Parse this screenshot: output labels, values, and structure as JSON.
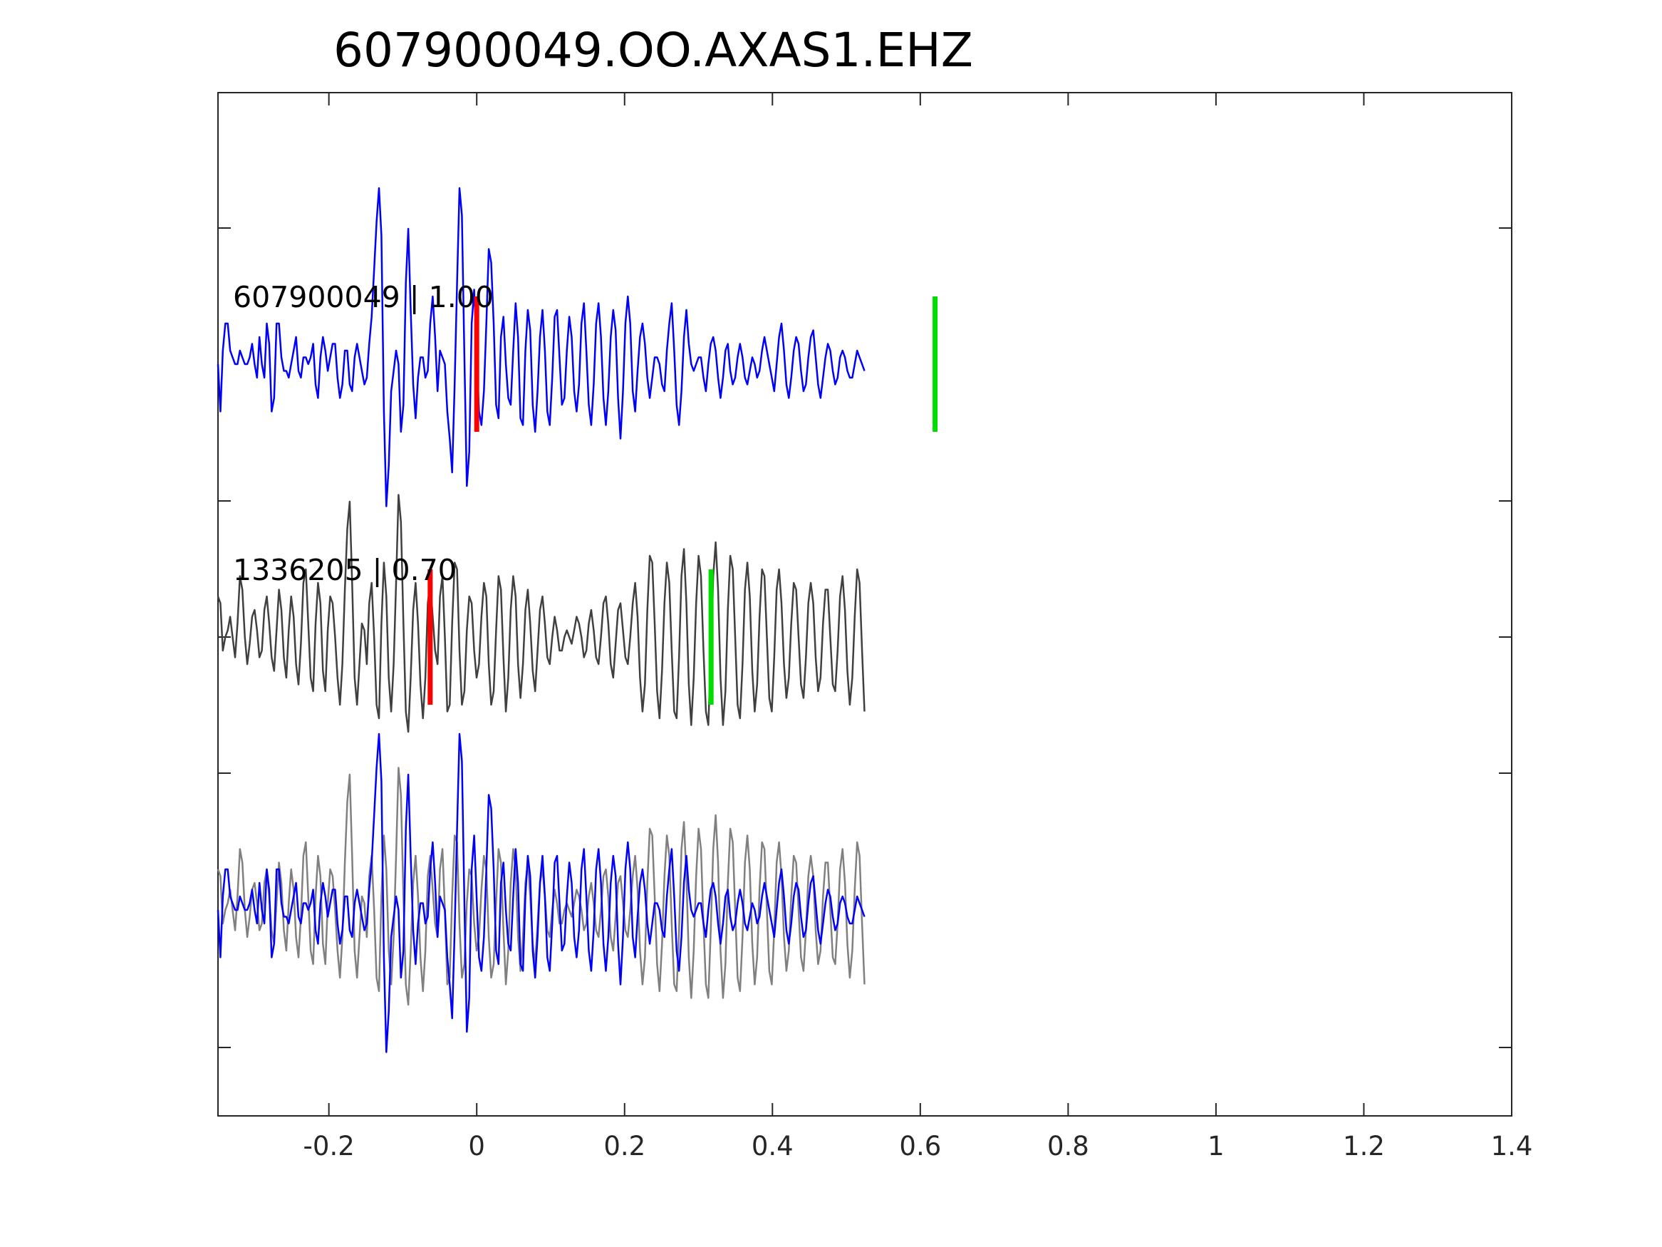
{
  "chart_data": {
    "type": "line",
    "title": "607900049.OO.AXAS1.EHZ",
    "xlabel": "",
    "ylabel": "",
    "xlim": [
      -0.35,
      1.4
    ],
    "x_ticks": [
      -0.2,
      0,
      0.2,
      0.4,
      0.6,
      0.8,
      1,
      1.2,
      1.4
    ],
    "x_tick_labels": [
      "-0.2",
      "0",
      "0.2",
      "0.4",
      "0.6",
      "0.8",
      "1",
      "1.2",
      "1.4"
    ],
    "y_tick_count": 7,
    "y_tick_labels_shown": false,
    "grid": false,
    "sample_interval_s": 0.0033,
    "panels": [
      {
        "label": "607900049 | 1.00",
        "series": [
          {
            "color": "#0000ff",
            "x_start": -0.35,
            "values": [
              0,
              -0.35,
              0.1,
              0.3,
              0.3,
              0.1,
              0.05,
              0,
              0,
              0.1,
              0.05,
              0,
              0,
              0.05,
              0.15,
              0,
              -0.1,
              0.2,
              0,
              -0.1,
              0.3,
              0.15,
              -0.35,
              -0.25,
              0.3,
              0.3,
              0.05,
              -0.05,
              -0.05,
              -0.1,
              0,
              0.1,
              0.2,
              -0.05,
              -0.1,
              0.05,
              0.05,
              0.0,
              0.05,
              0.15,
              -0.15,
              -0.25,
              0.05,
              0.2,
              0.1,
              -0.05,
              0.05,
              0.15,
              0.15,
              -0.1,
              -0.25,
              -0.15,
              0.1,
              0.1,
              -0.15,
              -0.2,
              0.05,
              0.15,
              0.05,
              -0.05,
              -0.15,
              -0.1,
              0.15,
              0.35,
              0.7,
              1.05,
              1.3,
              0.95,
              -0.35,
              -1.05,
              -0.75,
              -0.2,
              -0.05,
              0.1,
              0,
              -0.5,
              -0.3,
              0.6,
              1.0,
              0.4,
              -0.15,
              -0.4,
              -0.1,
              0.05,
              0.05,
              -0.1,
              -0.05,
              0.3,
              0.5,
              0.2,
              -0.2,
              0.1,
              0.05,
              0.0,
              -0.35,
              -0.55,
              -0.8,
              -0.15,
              0.6,
              1.3,
              1.1,
              0.05,
              -0.9,
              -0.65,
              0.3,
              0.55,
              0.1,
              -0.35,
              -0.45,
              -0.2,
              0.3,
              0.85,
              0.75,
              0.3,
              -0.3,
              -0.4,
              0.2,
              0.35,
              0.0,
              -0.25,
              -0.3,
              0.1,
              0.45,
              0.2,
              -0.4,
              -0.45,
              0.1,
              0.4,
              0.25,
              -0.3,
              -0.5,
              -0.2,
              0.2,
              0.4,
              0.1,
              -0.35,
              -0.45,
              -0.1,
              0.35,
              0.4,
              0.05,
              -0.3,
              -0.25,
              0.1,
              0.35,
              0.2,
              -0.2,
              -0.35,
              -0.15,
              0.3,
              0.45,
              0.1,
              -0.3,
              -0.45,
              -0.15,
              0.3,
              0.45,
              0.2,
              -0.25,
              -0.45,
              -0.2,
              0.2,
              0.4,
              0.25,
              -0.25,
              -0.55,
              -0.2,
              0.3,
              0.5,
              0.3,
              -0.2,
              -0.35,
              -0.05,
              0.2,
              0.3,
              0.15,
              -0.1,
              -0.25,
              -0.1,
              0.05,
              0.05,
              0.0,
              -0.15,
              -0.2,
              0.1,
              0.3,
              0.45,
              0.1,
              -0.3,
              -0.45,
              -0.2,
              0.2,
              0.4,
              0.15,
              0.0,
              -0.05,
              0.0,
              0.05,
              0.05,
              -0.1,
              -0.2,
              0.0,
              0.15,
              0.2,
              0.1,
              -0.1,
              -0.25,
              -0.1,
              0.1,
              0.15,
              -0.05,
              -0.15,
              -0.1,
              0.05,
              0.15,
              0.05,
              -0.1,
              -0.15,
              -0.05,
              0.05,
              0.0,
              -0.1,
              -0.05,
              0.1,
              0.2,
              0.1,
              0.0,
              -0.1,
              -0.2,
              0.0,
              0.2,
              0.3,
              0.1,
              -0.15,
              -0.25,
              -0.1,
              0.1,
              0.2,
              0.15,
              -0.05,
              -0.2,
              -0.15,
              0.05,
              0.2,
              0.25,
              0.05,
              -0.15,
              -0.25,
              -0.1,
              0.05,
              0.15,
              0.1,
              -0.05,
              -0.15,
              -0.1,
              0.05,
              0.1,
              0.05,
              -0.05,
              -0.1,
              -0.1,
              0.0,
              0.1,
              0.05,
              0.0,
              -0.05
            ]
          }
        ],
        "picks": [
          {
            "x": 0.0,
            "color": "#ff0000"
          },
          {
            "x": 0.62,
            "color": "#00dd00"
          }
        ]
      },
      {
        "label": "1336205 | 0.70",
        "series": [
          {
            "color": "#404040",
            "x_start": -0.35,
            "values": [
              0.3,
              0.25,
              -0.1,
              0.0,
              0.05,
              0.15,
              0.0,
              -0.15,
              0.1,
              0.45,
              0.35,
              0.0,
              -0.2,
              -0.05,
              0.15,
              0.2,
              0.05,
              -0.15,
              -0.1,
              0.2,
              0.3,
              0.1,
              -0.15,
              -0.25,
              0.05,
              0.35,
              0.2,
              -0.15,
              -0.3,
              0.05,
              0.3,
              0.15,
              -0.2,
              -0.35,
              -0.05,
              0.4,
              0.5,
              0.1,
              -0.3,
              -0.4,
              0.1,
              0.4,
              0.25,
              -0.25,
              -0.4,
              0.05,
              0.3,
              0.25,
              0.0,
              -0.3,
              -0.5,
              -0.2,
              0.35,
              0.8,
              1.0,
              0.4,
              -0.3,
              -0.5,
              -0.2,
              0.1,
              0.05,
              -0.2,
              0.25,
              0.4,
              0.0,
              -0.5,
              -0.6,
              0.1,
              0.55,
              0.3,
              -0.3,
              -0.55,
              -0.2,
              0.4,
              1.05,
              0.85,
              0.1,
              -0.55,
              -0.7,
              -0.3,
              0.2,
              0.4,
              0.1,
              -0.35,
              -0.6,
              -0.3,
              0.25,
              0.4,
              0.15,
              -0.1,
              -0.2,
              0.3,
              0.45,
              0.0,
              -0.55,
              -0.5,
              0.1,
              0.55,
              0.5,
              -0.1,
              -0.5,
              -0.4,
              0.05,
              0.3,
              0.25,
              -0.1,
              -0.3,
              -0.2,
              0.15,
              0.4,
              0.3,
              -0.2,
              -0.5,
              -0.4,
              0.05,
              0.45,
              0.35,
              -0.15,
              -0.55,
              -0.3,
              0.2,
              0.45,
              0.3,
              -0.2,
              -0.45,
              -0.2,
              0.2,
              0.35,
              0.1,
              -0.25,
              -0.4,
              -0.1,
              0.2,
              0.3,
              0.1,
              -0.15,
              -0.2,
              0.0,
              0.15,
              0.05,
              -0.1,
              -0.1,
              0.0,
              0.05,
              0.0,
              -0.05,
              0.05,
              0.15,
              0.1,
              0.0,
              -0.15,
              -0.1,
              0.1,
              0.2,
              0.05,
              -0.15,
              -0.2,
              0.0,
              0.25,
              0.3,
              0.1,
              -0.2,
              -0.3,
              -0.05,
              0.2,
              0.25,
              0.05,
              -0.15,
              -0.2,
              0.0,
              0.25,
              0.4,
              0.15,
              -0.3,
              -0.55,
              -0.35,
              0.2,
              0.6,
              0.55,
              0.1,
              -0.4,
              -0.6,
              -0.25,
              0.25,
              0.55,
              0.4,
              -0.1,
              -0.55,
              -0.6,
              -0.15,
              0.45,
              0.65,
              0.25,
              -0.35,
              -0.65,
              -0.3,
              0.25,
              0.6,
              0.45,
              -0.1,
              -0.55,
              -0.65,
              -0.15,
              0.45,
              0.7,
              0.35,
              -0.3,
              -0.65,
              -0.4,
              0.2,
              0.6,
              0.5,
              0.0,
              -0.5,
              -0.6,
              -0.2,
              0.35,
              0.55,
              0.3,
              -0.25,
              -0.55,
              -0.35,
              0.15,
              0.5,
              0.45,
              0.0,
              -0.45,
              -0.55,
              -0.15,
              0.35,
              0.5,
              0.25,
              -0.2,
              -0.45,
              -0.3,
              0.1,
              0.4,
              0.35,
              0.0,
              -0.35,
              -0.45,
              -0.15,
              0.25,
              0.4,
              0.25,
              -0.15,
              -0.4,
              -0.3,
              0.1,
              0.35,
              0.35,
              0.0,
              -0.35,
              -0.4,
              -0.1,
              0.3,
              0.45,
              0.2,
              -0.25,
              -0.5,
              -0.3,
              0.15,
              0.5,
              0.4,
              -0.1,
              -0.55
            ]
          }
        ],
        "picks": [
          {
            "x": -0.063,
            "color": "#ff0000"
          },
          {
            "x": 0.317,
            "color": "#00dd00"
          }
        ]
      },
      {
        "label": "",
        "series": [
          {
            "color": "#808080",
            "ref_panel": 1
          },
          {
            "color": "#0000ff",
            "ref_panel": 0
          }
        ],
        "picks": []
      }
    ]
  }
}
